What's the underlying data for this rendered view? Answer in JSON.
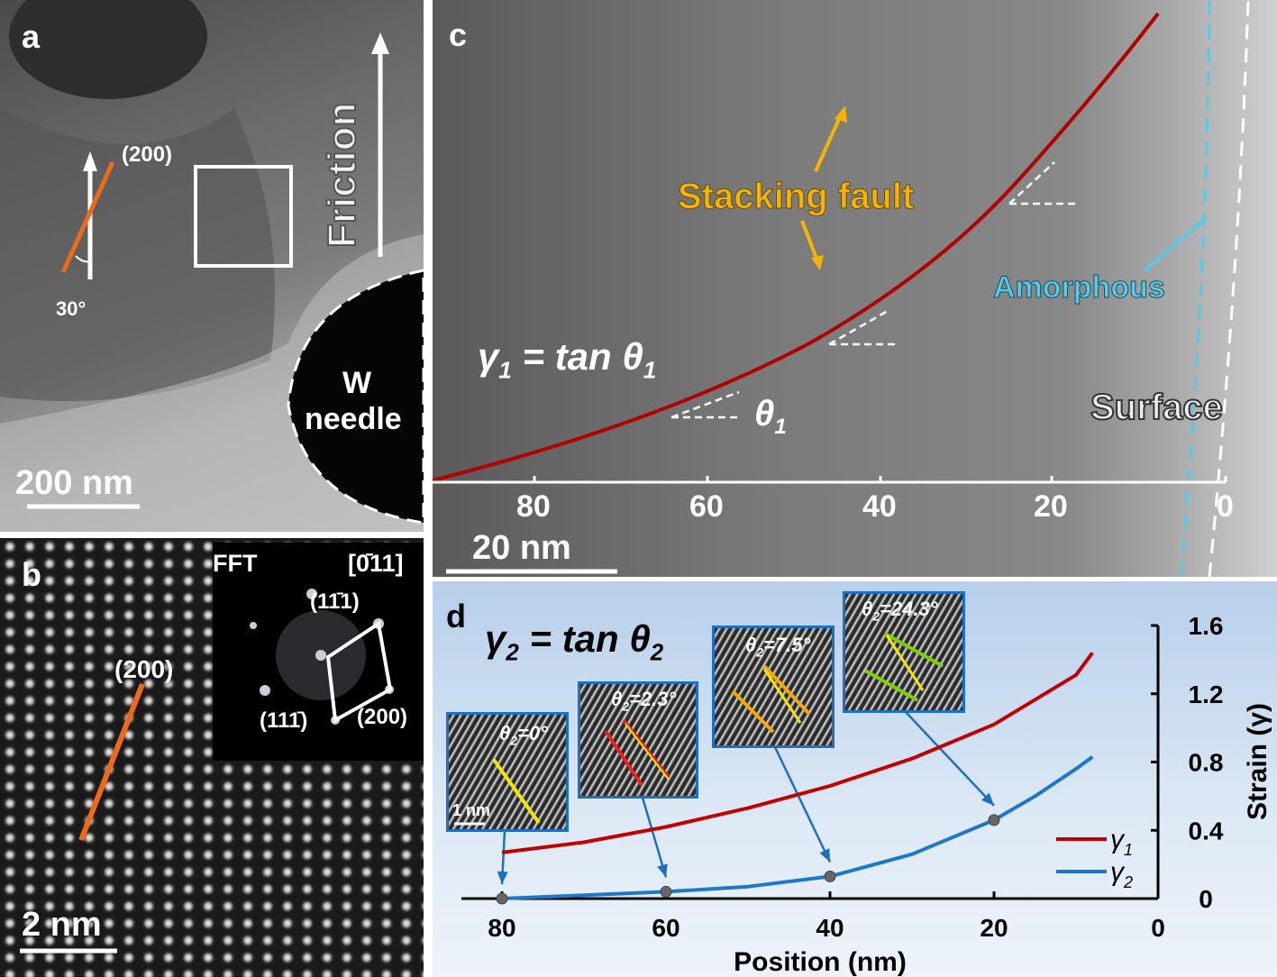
{
  "panel_a": {
    "letter": "a",
    "plane_label": "(200)",
    "angle_label": "30°",
    "friction_label": "Friction",
    "needle_label_1": "W",
    "needle_label_2": "needle",
    "scale_bar": "200 nm"
  },
  "panel_b": {
    "letter": "b",
    "plane_label": "(200)",
    "scale_bar": "2 nm",
    "fft": {
      "title": "FFT",
      "zone_axis": "[0̄11]",
      "spot_top": "(11̄1)",
      "spot_bottom": "(111̄)",
      "spot_right": "(200)"
    }
  },
  "panel_c": {
    "letter": "c",
    "stacking_fault": "Stacking fault",
    "amorphous": "Amorphous",
    "surface": "Surface",
    "equation": "γ1 = tan θ1",
    "equation_parts": {
      "gamma": "γ",
      "sub": "1",
      "mid": " = tan θ",
      "sub2": "1"
    },
    "theta_label": "θ",
    "theta_sub": "1",
    "axis_ticks": [
      "80",
      "60",
      "40",
      "20",
      "0"
    ],
    "scale_bar": "20 nm",
    "colors": {
      "curve": "#c00000",
      "amorphous": "#5bc8e6",
      "stacking_fault": "#f5b400"
    }
  },
  "panel_d": {
    "letter": "d",
    "equation_parts": {
      "gamma": "γ",
      "sub": "2",
      "mid": " = tan θ",
      "sub2": "2"
    },
    "insets": [
      {
        "theta": "θ",
        "sub": "2",
        "value": "=0°",
        "scale_bar": "1 nm"
      },
      {
        "theta": "θ",
        "sub": "2",
        "value": "=2.3°"
      },
      {
        "theta": "θ",
        "sub": "2",
        "value": "=7.5°"
      },
      {
        "theta": "θ",
        "sub": "2",
        "value": "=24.3°"
      }
    ]
  },
  "chart_data": {
    "type": "line",
    "xlabel": "Position (nm)",
    "ylabel": "Strain (γ)",
    "xlim": [
      80,
      0
    ],
    "ylim": [
      0,
      1.6
    ],
    "x_reversed": true,
    "x_ticks": [
      "80",
      "60",
      "40",
      "20",
      "0"
    ],
    "y_ticks": [
      "0",
      "0.4",
      "0.8",
      "1.2",
      "1.6"
    ],
    "legend_position": "bottom-right",
    "series": [
      {
        "name": "γ1",
        "legend_sub": "1",
        "color": "#c00000",
        "x": [
          80,
          70,
          60,
          50,
          40,
          30,
          20,
          10,
          8
        ],
        "y": [
          0.27,
          0.33,
          0.42,
          0.53,
          0.66,
          0.82,
          1.02,
          1.31,
          1.44
        ]
      },
      {
        "name": "γ2",
        "legend_sub": "2",
        "color": "#1e78c8",
        "x": [
          80,
          70,
          60,
          50,
          40,
          30,
          20,
          15,
          10,
          8
        ],
        "y": [
          0.0,
          0.02,
          0.04,
          0.07,
          0.13,
          0.26,
          0.46,
          0.6,
          0.76,
          0.83
        ],
        "markers": {
          "x": [
            80,
            60,
            40,
            20
          ],
          "y": [
            0.0,
            0.04,
            0.13,
            0.46
          ]
        }
      }
    ]
  }
}
